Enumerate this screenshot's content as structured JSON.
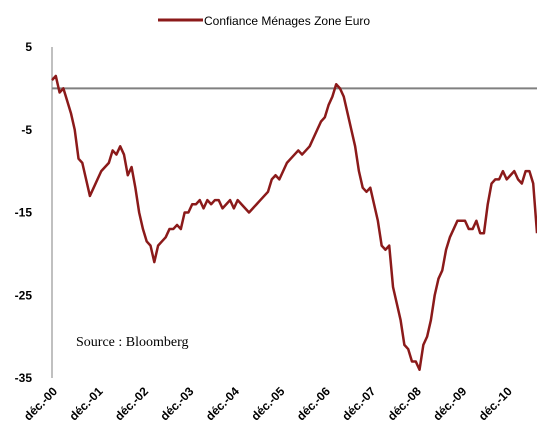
{
  "chart_data": {
    "type": "line",
    "series": [
      {
        "name": "Confiance Ménages Zone Euro",
        "color": "#8b1a1a",
        "values": [
          1,
          1.5,
          -0.5,
          0,
          -1.5,
          -3,
          -5,
          -8.5,
          -9,
          -11,
          -13,
          -12,
          -11,
          -10,
          -9.5,
          -9,
          -7.5,
          -8,
          -7,
          -8,
          -10.5,
          -9.5,
          -12,
          -15,
          -17,
          -18.5,
          -19,
          -21,
          -19,
          -18.5,
          -18,
          -17,
          -17,
          -16.5,
          -17,
          -15,
          -15,
          -14,
          -14,
          -13.5,
          -14.5,
          -13.5,
          -14,
          -13.5,
          -13.5,
          -14.5,
          -14,
          -13.5,
          -14.5,
          -13.5,
          -14,
          -14.5,
          -15,
          -14.5,
          -14,
          -13.5,
          -13,
          -12.5,
          -11,
          -10.5,
          -11,
          -10,
          -9,
          -8.5,
          -8,
          -7.5,
          -8,
          -7.5,
          -7,
          -6,
          -5,
          -4,
          -3.5,
          -2,
          -1,
          0.5,
          0,
          -1,
          -3,
          -5,
          -7,
          -10,
          -12,
          -12.5,
          -12,
          -14,
          -16,
          -19,
          -19.5,
          -19,
          -24,
          -26,
          -28,
          -31,
          -31.5,
          -33,
          -33,
          -34,
          -31,
          -30,
          -28,
          -25,
          -23,
          -22,
          -19.5,
          -18,
          -17,
          -16,
          -16,
          -16,
          -17,
          -17,
          -16,
          -17.5,
          -17.5,
          -14,
          -11.5,
          -11,
          -11,
          -10,
          -11,
          -10.5,
          -10,
          -11,
          -11.5,
          -10,
          -10,
          -11.5,
          -17.5
        ]
      }
    ],
    "categories": [
      "déc.-00",
      null,
      null,
      null,
      null,
      null,
      null,
      null,
      null,
      null,
      null,
      null,
      "déc.-01",
      null,
      null,
      null,
      null,
      null,
      null,
      null,
      null,
      null,
      null,
      null,
      "déc.-02",
      null,
      null,
      null,
      null,
      null,
      null,
      null,
      null,
      null,
      null,
      null,
      "déc.-03",
      null,
      null,
      null,
      null,
      null,
      null,
      null,
      null,
      null,
      null,
      null,
      "déc.-04",
      null,
      null,
      null,
      null,
      null,
      null,
      null,
      null,
      null,
      null,
      null,
      "déc.-05",
      null,
      null,
      null,
      null,
      null,
      null,
      null,
      null,
      null,
      null,
      null,
      "déc.-06",
      null,
      null,
      null,
      null,
      null,
      null,
      null,
      null,
      null,
      null,
      null,
      "déc.-07",
      null,
      null,
      null,
      null,
      null,
      null,
      null,
      null,
      null,
      null,
      null,
      "déc.-08",
      null,
      null,
      null,
      null,
      null,
      null,
      null,
      null,
      null,
      null,
      null,
      "déc.-09",
      null,
      null,
      null,
      null,
      null,
      null,
      null,
      null,
      null,
      null,
      null,
      "déc.-10",
      null,
      null,
      null,
      null,
      null,
      null,
      null,
      null
    ],
    "ylim": [
      -35,
      5
    ],
    "yticks": [
      5,
      -5,
      -15,
      -25,
      -35
    ],
    "baseline": 0,
    "annotation": "Source : Bloomberg",
    "legend": "top"
  }
}
